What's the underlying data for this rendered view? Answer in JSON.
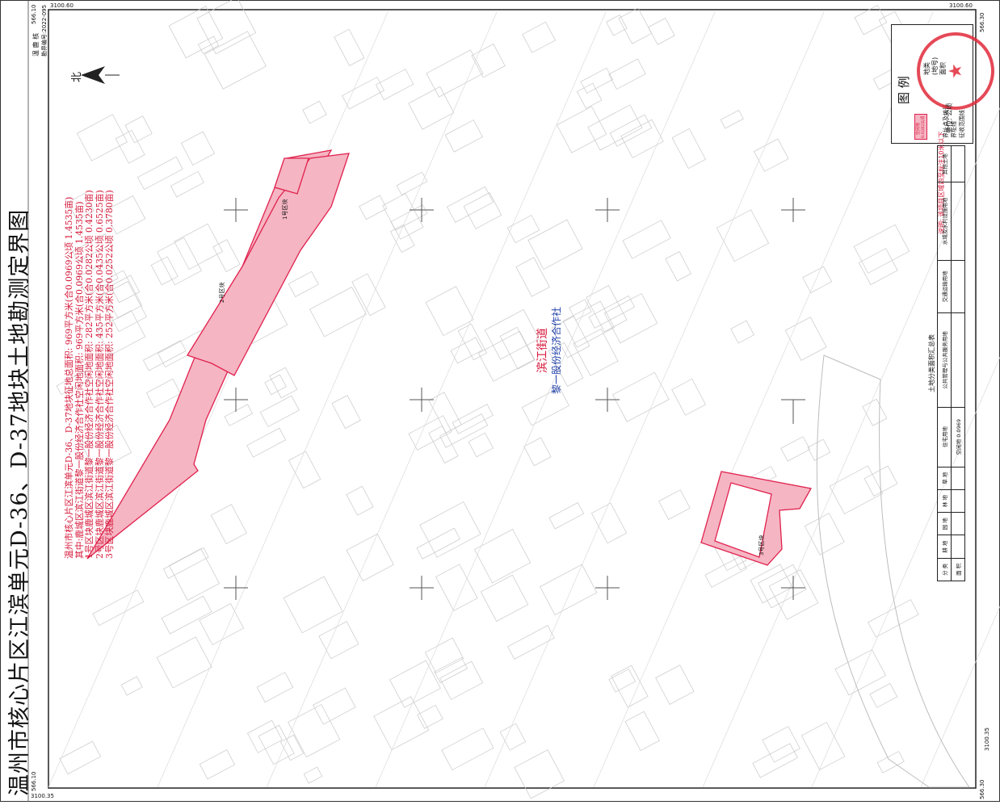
{
  "title": "温州市核心片区江滨单元D-36、D-37地块土地勘测定界图",
  "header": {
    "unit_code": "温 鹿 核",
    "survey_code": "勘界编号:2022-095"
  },
  "frame": {
    "tl_x": "566.10",
    "tl_y": "3100.60",
    "tr_x": "566.30",
    "tr_y": "3100.60",
    "bl_x": "566.10",
    "bl_y": "3100.35",
    "br_x": "566.30",
    "br_y": "3100.35"
  },
  "north_label": "北",
  "area_notes": [
    "温州市核心片区江滨单元D-36、D-37地块征地总面积: 969平方米(合0.0969公顷 1.4535亩)",
    "其中:鹿城区滨江街道黎一股份经济合作社空闲地面积: 969平方米(合0.0969公顷 1.4535亩)",
    "1号区块鹿城区滨江街道黎一股份经济合作社空闲地面积: 282平方米(合0.0282公顷 0.4230亩)",
    "2号区块鹿城区滨江街道黎一股份经济合作社空闲地面积: 435平方米(合0.0435公顷 0.6525亩)",
    "3号区块鹿城区滨江街道黎一股份经济合作社空闲地面积: 252平方米(合0.0252公顷 0.3780亩)"
  ],
  "place_name": {
    "street": "滨江街道",
    "coop": "黎一股份经济合作社"
  },
  "block_labels": [
    "1号区块",
    "2号区块",
    "3号区块"
  ],
  "legend": {
    "title": "图  例",
    "items": [
      "地类",
      "(地号)",
      "面积",
      "界址点及编号",
      "界址线",
      "征收范围线"
    ],
    "sample_code": "空闲地",
    "sample_area": "0.0282公顷"
  },
  "note": "说明: 该项目区域四至标注10米以下",
  "unit": "单位: 公顷",
  "summary_table": {
    "title": "土地分类面积汇总表",
    "headers": [
      "分 类",
      "耕 地",
      "园 地",
      "林 地",
      "草 地",
      "住宅用地",
      "公共管理与公共服务用地",
      "交通运输用地",
      "水域及水利设施用地",
      "其他土地"
    ],
    "sub_headers": [
      "面 积"
    ],
    "row_type": "空闲地",
    "row_value": "0.0969"
  },
  "stamp_text": "温州市自然资源和规划局",
  "colors": {
    "parcel_fill": "#f5b5c3",
    "parcel_stroke": "#e0214d",
    "note_red": "#d6183a",
    "label_blue": "#1f3fa8",
    "grid": "#cfcfcf"
  }
}
